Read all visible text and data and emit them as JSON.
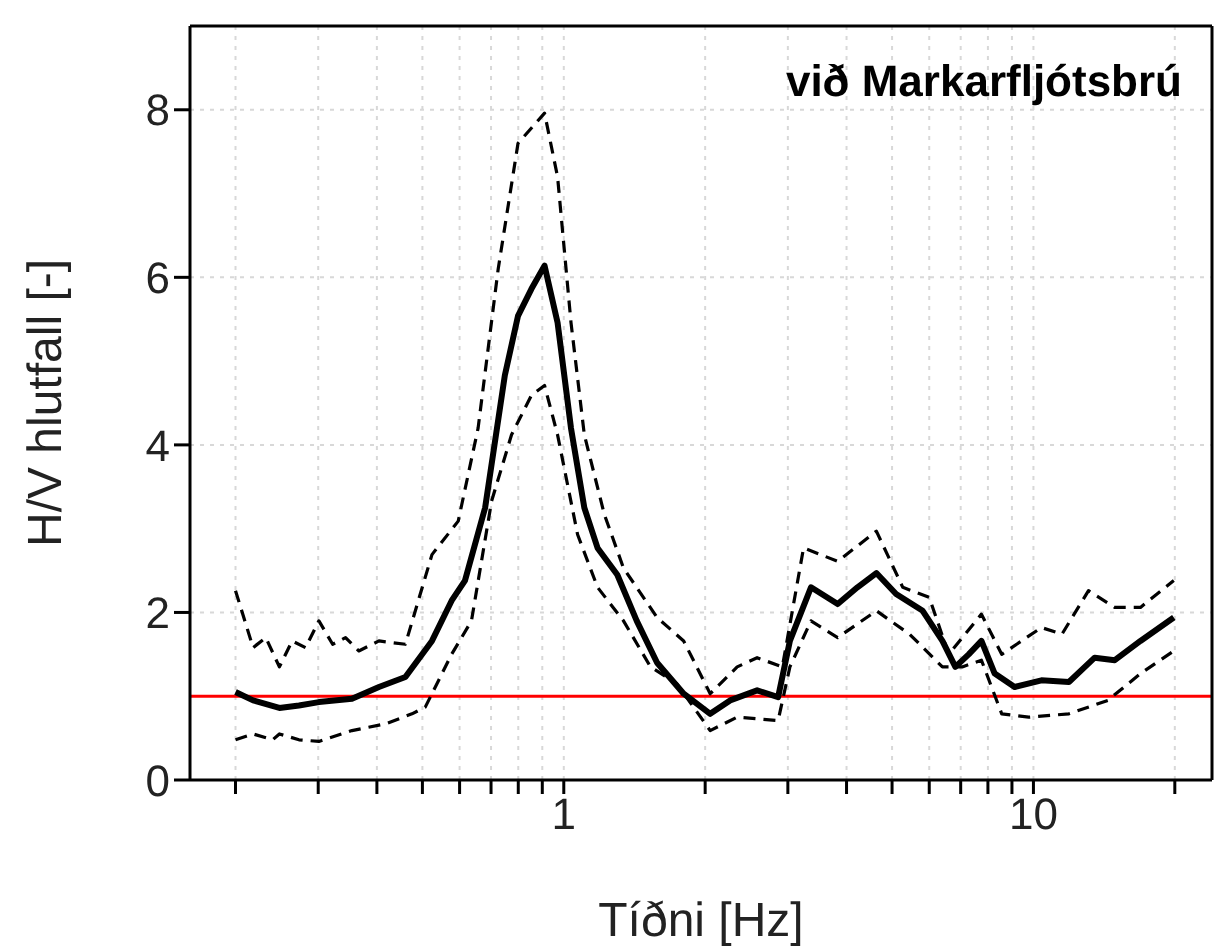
{
  "chart_data": {
    "type": "line",
    "xlabel": "Tíðni [Hz]",
    "ylabel": "H/V hlutfall [-]",
    "annotations": [
      "við Markarfljótsbrú"
    ],
    "log": "x",
    "grid": true,
    "legend": false,
    "marker": "none",
    "xlim": [
      0.16,
      24
    ],
    "ylim": [
      0,
      9
    ],
    "xticks": [
      {
        "value": 0.2,
        "label": null
      },
      {
        "value": 0.3,
        "label": null
      },
      {
        "value": 0.4,
        "label": null
      },
      {
        "value": 0.5,
        "label": null
      },
      {
        "value": 0.6,
        "label": null
      },
      {
        "value": 0.7,
        "label": null
      },
      {
        "value": 0.8,
        "label": null
      },
      {
        "value": 0.9,
        "label": null
      },
      1,
      {
        "value": 2,
        "label": null
      },
      {
        "value": 3,
        "label": null
      },
      {
        "value": 4,
        "label": null
      },
      {
        "value": 5,
        "label": null
      },
      {
        "value": 6,
        "label": null
      },
      {
        "value": 7,
        "label": null
      },
      {
        "value": 8,
        "label": null
      },
      {
        "value": 9,
        "label": null
      },
      10,
      {
        "value": 20,
        "label": null
      }
    ],
    "yticks": [
      0,
      2,
      4,
      6,
      8
    ],
    "ref_lines": [
      {
        "axis": "y",
        "value": 1,
        "color": "#ff0000"
      }
    ],
    "series": [
      {
        "color": "#000000",
        "line_style": "solid",
        "x": [
          0.2,
          0.218,
          0.248,
          0.273,
          0.301,
          0.354,
          0.404,
          0.46,
          0.524,
          0.577,
          0.616,
          0.68,
          0.749,
          0.799,
          0.853,
          0.91,
          0.97,
          1.036,
          1.106,
          1.18,
          1.3,
          1.43,
          1.58,
          1.8,
          2.05,
          2.26,
          2.58,
          2.86,
          3.03,
          3.36,
          3.83,
          4.22,
          4.63,
          5.1,
          5.81,
          6.4,
          6.82,
          7.28,
          7.75,
          8.27,
          9.12,
          10.4,
          11.9,
          13.5,
          14.9,
          16.9,
          19.9
        ],
        "values": [
          1.05,
          0.95,
          0.86,
          0.89,
          0.93,
          0.97,
          1.11,
          1.23,
          1.66,
          2.14,
          2.38,
          3.25,
          4.83,
          5.54,
          5.86,
          6.14,
          5.46,
          4.2,
          3.25,
          2.77,
          2.45,
          1.9,
          1.4,
          1.03,
          0.79,
          0.95,
          1.07,
          0.99,
          1.66,
          2.3,
          2.1,
          2.3,
          2.47,
          2.22,
          2.02,
          1.66,
          1.35,
          1.5,
          1.66,
          1.27,
          1.11,
          1.19,
          1.17,
          1.46,
          1.43,
          1.66,
          1.94
        ]
      },
      {
        "color": "#000000",
        "line_style": "dashed",
        "x": [
          0.2,
          0.218,
          0.232,
          0.248,
          0.264,
          0.282,
          0.301,
          0.322,
          0.343,
          0.366,
          0.404,
          0.46,
          0.524,
          0.596,
          0.657,
          0.725,
          0.799,
          0.91,
          0.97,
          1.036,
          1.106,
          1.22,
          1.34,
          1.58,
          1.8,
          2.05,
          2.34,
          2.58,
          2.92,
          3.24,
          3.83,
          4.63,
          5.27,
          6.0,
          6.6,
          7.75,
          8.56,
          10.4,
          11.5,
          13.1,
          14.9,
          16.9,
          19.9
        ],
        "values": [
          2.26,
          1.58,
          1.7,
          1.35,
          1.66,
          1.58,
          1.9,
          1.62,
          1.7,
          1.54,
          1.66,
          1.62,
          2.69,
          3.09,
          4.2,
          6.1,
          7.6,
          7.96,
          7.2,
          5.46,
          4.12,
          3.17,
          2.53,
          1.94,
          1.66,
          1.03,
          1.35,
          1.46,
          1.35,
          2.77,
          2.61,
          2.97,
          2.3,
          2.18,
          1.5,
          1.98,
          1.5,
          1.82,
          1.74,
          2.26,
          2.06,
          2.06,
          2.38
        ]
      },
      {
        "color": "#000000",
        "line_style": "dashed",
        "x": [
          0.2,
          0.218,
          0.24,
          0.248,
          0.273,
          0.301,
          0.354,
          0.417,
          0.475,
          0.507,
          0.577,
          0.636,
          0.702,
          0.774,
          0.853,
          0.91,
          0.97,
          1.07,
          1.18,
          1.34,
          1.53,
          1.74,
          2.05,
          2.34,
          2.86,
          3.03,
          3.36,
          3.83,
          4.63,
          5.45,
          6.4,
          7.05,
          7.75,
          8.56,
          9.77,
          11.9,
          14.4,
          16.9,
          19.9
        ],
        "values": [
          0.48,
          0.55,
          0.48,
          0.55,
          0.48,
          0.46,
          0.59,
          0.67,
          0.79,
          0.87,
          1.5,
          1.9,
          3.33,
          4.12,
          4.59,
          4.71,
          4.12,
          2.93,
          2.3,
          1.9,
          1.35,
          1.15,
          0.59,
          0.75,
          0.71,
          1.35,
          1.9,
          1.7,
          2.02,
          1.74,
          1.35,
          1.35,
          1.43,
          0.79,
          0.75,
          0.79,
          0.95,
          1.27,
          1.54
        ]
      }
    ]
  }
}
